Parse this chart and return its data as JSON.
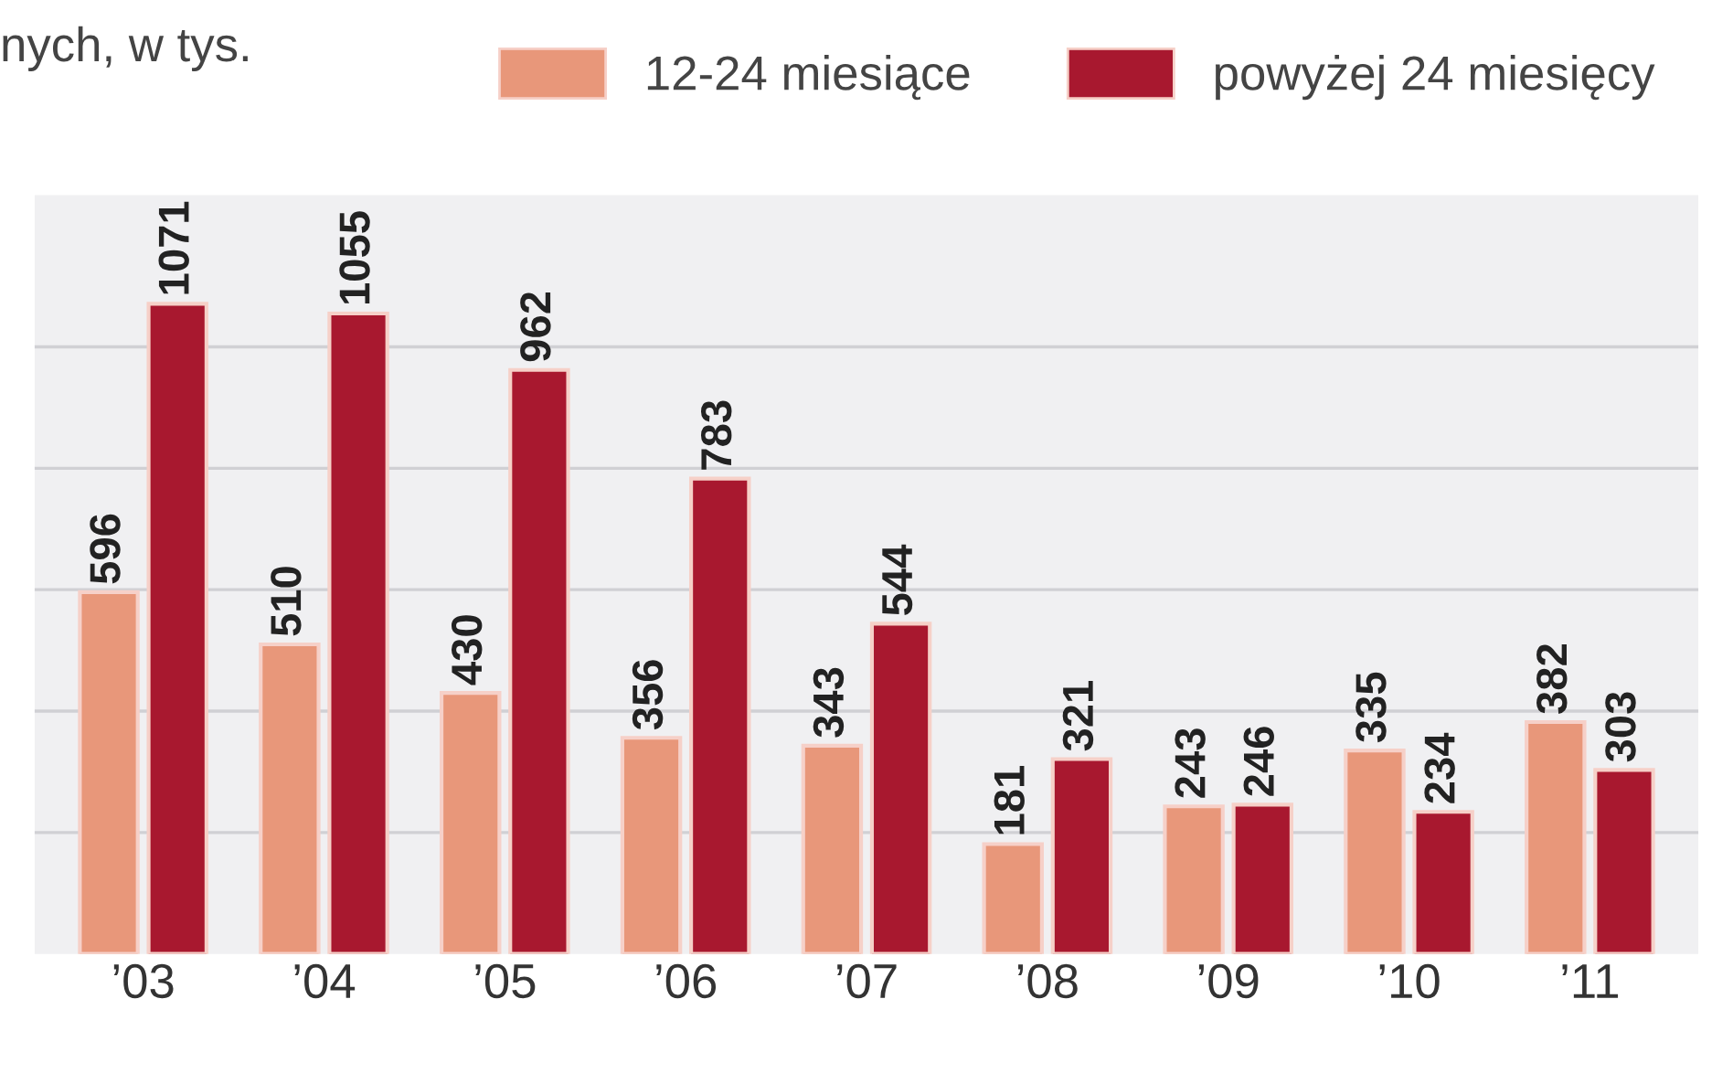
{
  "chart_data": {
    "type": "bar",
    "title": "nych, w tys.",
    "categories": [
      "’03",
      "’04",
      "’05",
      "’06",
      "’07",
      "’08",
      "’09",
      "’10",
      "’11"
    ],
    "series": [
      {
        "name": "12-24 miesiące",
        "color": "#e8977a",
        "values": [
          596,
          510,
          430,
          356,
          343,
          181,
          243,
          335,
          382
        ]
      },
      {
        "name": "powyżej 24 miesięcy",
        "color": "#a8182f",
        "values": [
          1071,
          1055,
          962,
          783,
          544,
          321,
          246,
          234,
          303
        ]
      }
    ],
    "ylim": [
      0,
      1250
    ],
    "yticks": [
      {
        "value": 200,
        "label": null
      },
      {
        "value": 400,
        "label": null
      },
      {
        "value": 600,
        "label": null
      },
      {
        "value": 800,
        "label": null
      },
      {
        "value": 1000,
        "label": null
      }
    ],
    "tick_labels": "x",
    "grid": "y",
    "legend": "top",
    "data_labels": true
  }
}
